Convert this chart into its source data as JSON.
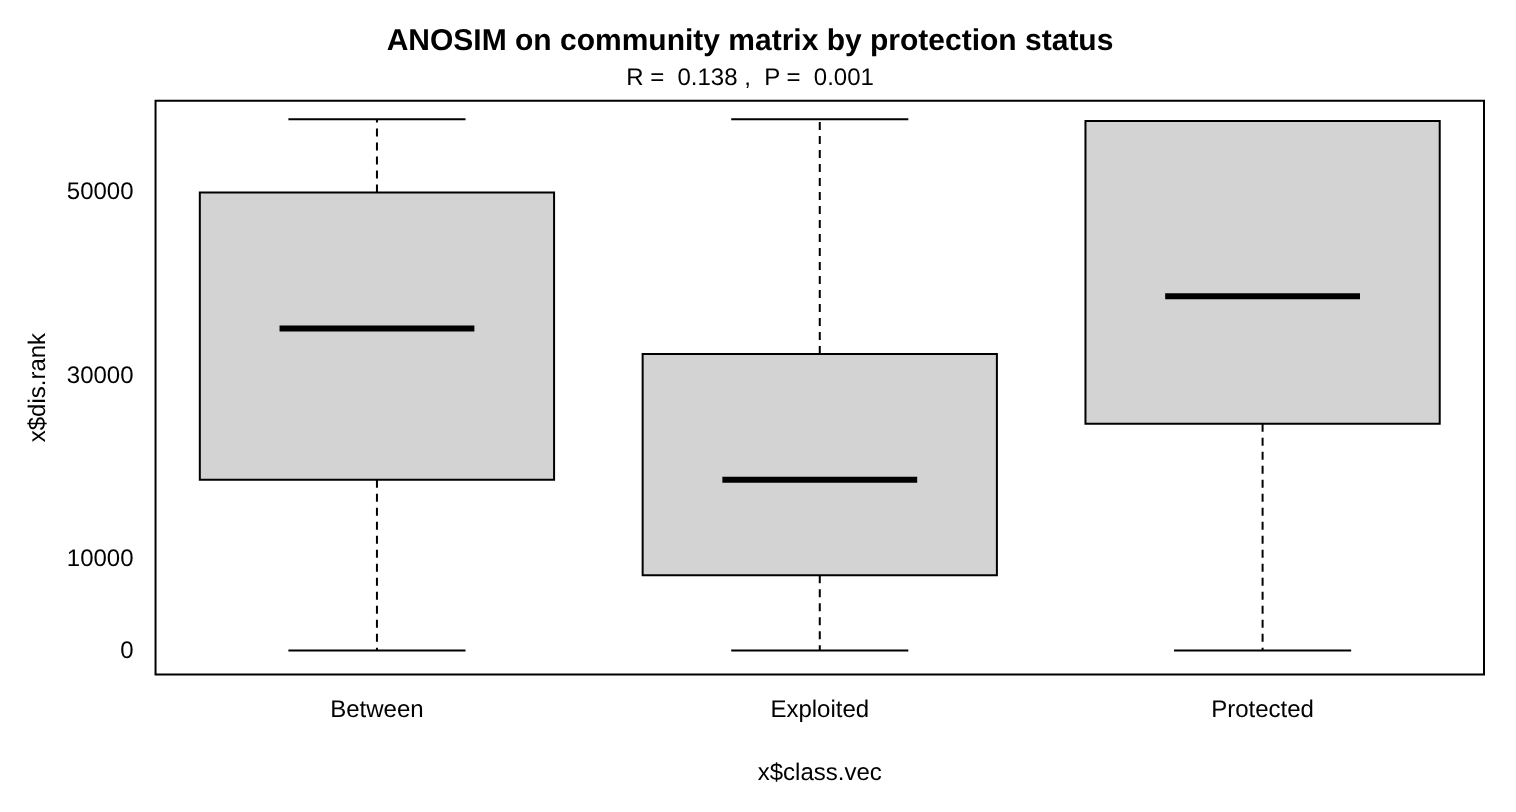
{
  "chart_data": {
    "type": "box",
    "title": "ANOSIM on community matrix by protection status",
    "subtitle": "R =  0.138 ,  P =  0.001",
    "xlabel": "x$class.vec",
    "ylabel": "x$dis.rank",
    "categories": [
      "Between",
      "Exploited",
      "Protected"
    ],
    "boxes": [
      {
        "low": 100,
        "q1": 18700,
        "median": 35200,
        "q3": 50000,
        "high": 58000
      },
      {
        "low": 100,
        "q1": 8300,
        "median": 18700,
        "q3": 32400,
        "high": 58000
      },
      {
        "low": 100,
        "q1": 24800,
        "median": 38700,
        "q3": 57800,
        "high": 57800
      }
    ],
    "color": "#d3d3d3",
    "ylim": [
      -2500,
      60000
    ],
    "yticks": [
      0,
      10000,
      30000,
      50000
    ],
    "grid": false,
    "legend": false
  }
}
